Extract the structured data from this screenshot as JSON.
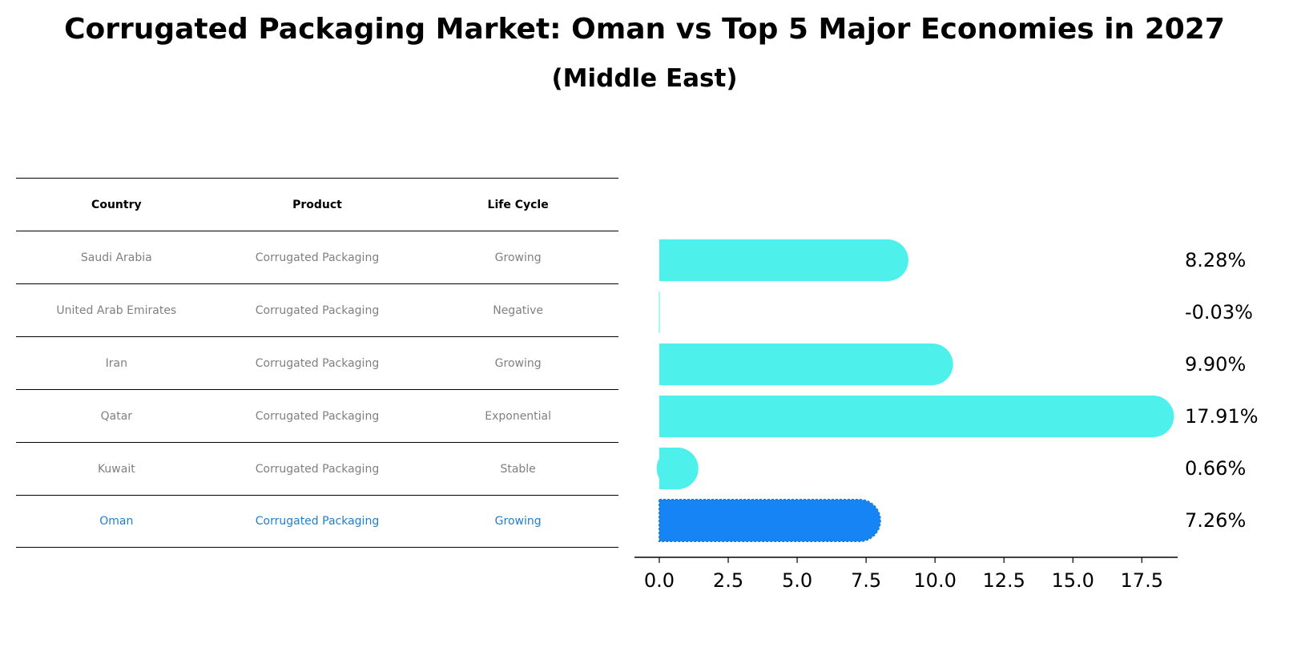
{
  "title": "Corrugated Packaging Market: Oman vs Top 5 Major Economies in 2027",
  "subtitle": "(Middle East)",
  "table": {
    "headers": [
      "Country",
      "Product",
      "Life Cycle"
    ],
    "rows": [
      [
        "Saudi Arabia",
        "Corrugated Packaging",
        "Growing"
      ],
      [
        "United Arab Emirates",
        "Corrugated Packaging",
        "Negative"
      ],
      [
        "Iran",
        "Corrugated Packaging",
        "Growing"
      ],
      [
        "Qatar",
        "Corrugated Packaging",
        "Exponential"
      ],
      [
        "Kuwait",
        "Corrugated Packaging",
        "Stable"
      ],
      [
        "Oman",
        "Corrugated Packaging",
        "Growing"
      ]
    ]
  },
  "colors": {
    "bar": "#4ef0ec",
    "highlight_bar": "#1784f5",
    "highlight_text": "#1f7fcf",
    "muted_text": "#808080"
  },
  "chart_data": {
    "type": "bar",
    "orientation": "horizontal",
    "title": "Corrugated Packaging Market: Oman vs Top 5 Major Economies in 2027",
    "subtitle": "(Middle East)",
    "categories": [
      "Saudi Arabia",
      "United Arab Emirates",
      "Iran",
      "Qatar",
      "Kuwait",
      "Oman"
    ],
    "values": [
      8.28,
      -0.03,
      9.9,
      17.91,
      0.66,
      7.26
    ],
    "value_labels": [
      "8.28%",
      "-0.03%",
      "9.90%",
      "17.91%",
      "0.66%",
      "7.26%"
    ],
    "highlight_index": 5,
    "xlim": [
      -0.9,
      18.8
    ],
    "xticks": [
      0.0,
      2.5,
      5.0,
      7.5,
      10.0,
      12.5,
      15.0,
      17.5
    ],
    "xtick_labels": [
      "0.0",
      "2.5",
      "5.0",
      "7.5",
      "10.0",
      "12.5",
      "15.0",
      "17.5"
    ],
    "xlabel": "",
    "ylabel": "",
    "grid": false
  }
}
